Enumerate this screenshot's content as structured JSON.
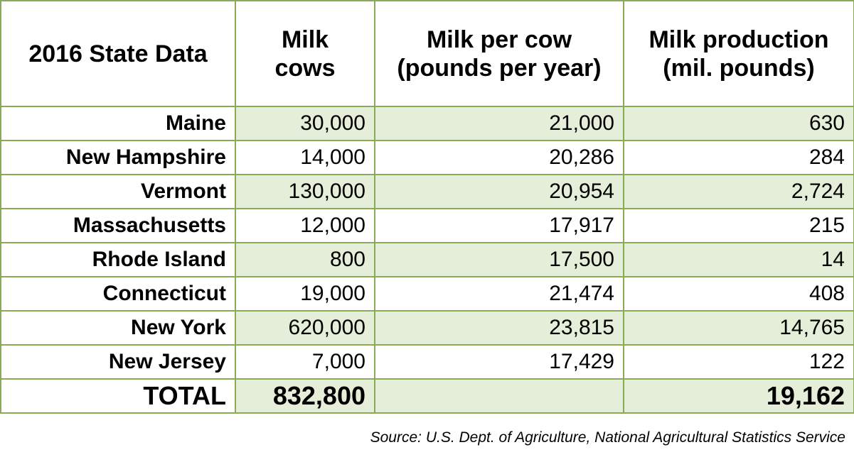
{
  "chart_data": {
    "type": "table",
    "columns": [
      "2016 State Data",
      "Milk cows",
      "Milk per cow (pounds per year)",
      "Milk production (mil. pounds)"
    ],
    "rows": [
      {
        "state": "Maine",
        "cows": "30,000",
        "per_cow": "21,000",
        "production": "630"
      },
      {
        "state": "New Hampshire",
        "cows": "14,000",
        "per_cow": "20,286",
        "production": "284"
      },
      {
        "state": "Vermont",
        "cows": "130,000",
        "per_cow": "20,954",
        "production": "2,724"
      },
      {
        "state": "Massachusetts",
        "cows": "12,000",
        "per_cow": "17,917",
        "production": "215"
      },
      {
        "state": "Rhode Island",
        "cows": "800",
        "per_cow": "17,500",
        "production": "14"
      },
      {
        "state": "Connecticut",
        "cows": "19,000",
        "per_cow": "21,474",
        "production": "408"
      },
      {
        "state": "New York",
        "cows": "620,000",
        "per_cow": "23,815",
        "production": "14,765"
      },
      {
        "state": "New Jersey",
        "cows": "7,000",
        "per_cow": "17,429",
        "production": "122"
      }
    ],
    "total": {
      "label": "TOTAL",
      "cows": "832,800",
      "per_cow": "",
      "production": "19,162"
    },
    "source": "Source:  U.S. Dept. of Agriculture, National Agricultural Statistics Service"
  },
  "colors": {
    "border": "#8aaa55",
    "shade": "#e4eed8"
  }
}
